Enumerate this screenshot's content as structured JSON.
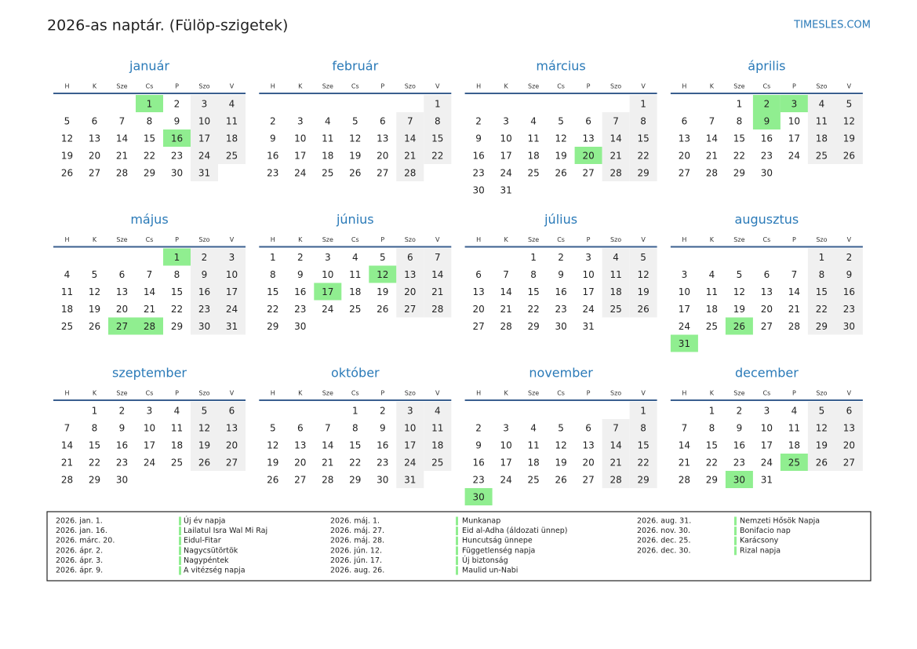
{
  "header": {
    "title": "2026-as naptár. (Fülöp-szigetek)",
    "site": "TIMESLES.COM"
  },
  "weekdays": [
    "H",
    "K",
    "Sze",
    "Cs",
    "P",
    "Szo",
    "V"
  ],
  "months": [
    {
      "name": "január",
      "holidays": [
        1,
        16
      ],
      "days": [
        null,
        null,
        null,
        1,
        2,
        3,
        4,
        5,
        6,
        7,
        8,
        9,
        10,
        11,
        12,
        13,
        14,
        15,
        16,
        17,
        18,
        19,
        20,
        21,
        22,
        23,
        24,
        25,
        26,
        27,
        28,
        29,
        30,
        31
      ]
    },
    {
      "name": "február",
      "holidays": [],
      "days": [
        null,
        null,
        null,
        null,
        null,
        null,
        1,
        2,
        3,
        4,
        5,
        6,
        7,
        8,
        9,
        10,
        11,
        12,
        13,
        14,
        15,
        16,
        17,
        18,
        19,
        20,
        21,
        22,
        23,
        24,
        25,
        26,
        27,
        28
      ]
    },
    {
      "name": "március",
      "holidays": [
        20
      ],
      "days": [
        null,
        null,
        null,
        null,
        null,
        null,
        1,
        2,
        3,
        4,
        5,
        6,
        7,
        8,
        9,
        10,
        11,
        12,
        13,
        14,
        15,
        16,
        17,
        18,
        19,
        20,
        21,
        22,
        23,
        24,
        25,
        26,
        27,
        28,
        29,
        30,
        31
      ]
    },
    {
      "name": "április",
      "holidays": [
        2,
        3,
        9
      ],
      "days": [
        null,
        null,
        1,
        2,
        3,
        4,
        5,
        6,
        7,
        8,
        9,
        10,
        11,
        12,
        13,
        14,
        15,
        16,
        17,
        18,
        19,
        20,
        21,
        22,
        23,
        24,
        25,
        26,
        27,
        28,
        29,
        30
      ]
    },
    {
      "name": "május",
      "holidays": [
        1,
        27,
        28
      ],
      "days": [
        null,
        null,
        null,
        null,
        1,
        2,
        3,
        4,
        5,
        6,
        7,
        8,
        9,
        10,
        11,
        12,
        13,
        14,
        15,
        16,
        17,
        18,
        19,
        20,
        21,
        22,
        23,
        24,
        25,
        26,
        27,
        28,
        29,
        30,
        31
      ]
    },
    {
      "name": "június",
      "holidays": [
        12,
        17
      ],
      "days": [
        1,
        2,
        3,
        4,
        5,
        6,
        7,
        8,
        9,
        10,
        11,
        12,
        13,
        14,
        15,
        16,
        17,
        18,
        19,
        20,
        21,
        22,
        23,
        24,
        25,
        26,
        27,
        28,
        29,
        30
      ]
    },
    {
      "name": "július",
      "holidays": [],
      "days": [
        null,
        null,
        1,
        2,
        3,
        4,
        5,
        6,
        7,
        8,
        9,
        10,
        11,
        12,
        13,
        14,
        15,
        16,
        17,
        18,
        19,
        20,
        21,
        22,
        23,
        24,
        25,
        26,
        27,
        28,
        29,
        30,
        31
      ]
    },
    {
      "name": "augusztus",
      "holidays": [
        26,
        31
      ],
      "days": [
        null,
        null,
        null,
        null,
        null,
        1,
        2,
        3,
        4,
        5,
        6,
        7,
        8,
        9,
        10,
        11,
        12,
        13,
        14,
        15,
        16,
        17,
        18,
        19,
        20,
        21,
        22,
        23,
        24,
        25,
        26,
        27,
        28,
        29,
        30,
        31
      ]
    },
    {
      "name": "szeptember",
      "holidays": [],
      "days": [
        null,
        1,
        2,
        3,
        4,
        5,
        6,
        7,
        8,
        9,
        10,
        11,
        12,
        13,
        14,
        15,
        16,
        17,
        18,
        19,
        20,
        21,
        22,
        23,
        24,
        25,
        26,
        27,
        28,
        29,
        30
      ]
    },
    {
      "name": "október",
      "holidays": [],
      "days": [
        null,
        null,
        null,
        1,
        2,
        3,
        4,
        5,
        6,
        7,
        8,
        9,
        10,
        11,
        12,
        13,
        14,
        15,
        16,
        17,
        18,
        19,
        20,
        21,
        22,
        23,
        24,
        25,
        26,
        27,
        28,
        29,
        30,
        31
      ]
    },
    {
      "name": "november",
      "holidays": [
        30
      ],
      "days": [
        null,
        null,
        null,
        null,
        null,
        null,
        1,
        2,
        3,
        4,
        5,
        6,
        7,
        8,
        9,
        10,
        11,
        12,
        13,
        14,
        15,
        16,
        17,
        18,
        19,
        20,
        21,
        22,
        23,
        24,
        25,
        26,
        27,
        28,
        29,
        30
      ]
    },
    {
      "name": "december",
      "holidays": [
        25,
        30
      ],
      "days": [
        null,
        1,
        2,
        3,
        4,
        5,
        6,
        7,
        8,
        9,
        10,
        11,
        12,
        13,
        14,
        15,
        16,
        17,
        18,
        19,
        20,
        21,
        22,
        23,
        24,
        25,
        26,
        27,
        28,
        29,
        30,
        31
      ]
    }
  ],
  "holidays": [
    {
      "date": "2026. jan. 1.",
      "name": "Új év napja"
    },
    {
      "date": "2026. jan. 16.",
      "name": "Lailatul Isra Wal Mi Raj"
    },
    {
      "date": "2026. márc. 20.",
      "name": "Eidul-Fitar"
    },
    {
      "date": "2026. ápr. 2.",
      "name": "Nagycsütörtök"
    },
    {
      "date": "2026. ápr. 3.",
      "name": "Nagypéntek"
    },
    {
      "date": "2026. ápr. 9.",
      "name": "A vitézség napja"
    },
    {
      "date": "2026. máj. 1.",
      "name": "Munkanap"
    },
    {
      "date": "2026. máj. 27.",
      "name": "Eid al-Adha (áldozati ünnep)"
    },
    {
      "date": "2026. máj. 28.",
      "name": "Huncutság ünnepe"
    },
    {
      "date": "2026. jún. 12.",
      "name": "Függetlenség napja"
    },
    {
      "date": "2026. jún. 17.",
      "name": "Új biztonság"
    },
    {
      "date": "2026. aug. 26.",
      "name": "Maulid un-Nabi"
    },
    {
      "date": "2026. aug. 31.",
      "name": "Nemzeti Hősök Napja"
    },
    {
      "date": "2026. nov. 30.",
      "name": "Bonifacio nap"
    },
    {
      "date": "2026. dec. 25.",
      "name": "Karácsony"
    },
    {
      "date": "2026. dec. 30.",
      "name": "Rizal napja"
    }
  ]
}
